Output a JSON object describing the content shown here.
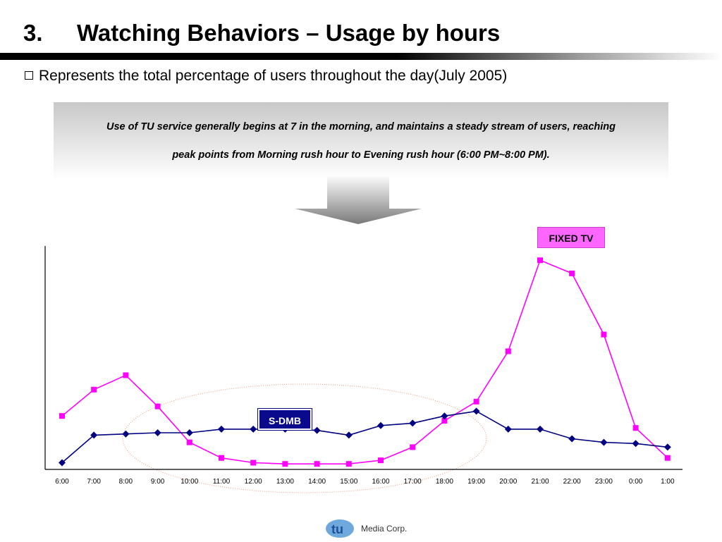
{
  "slide": {
    "title_number": "3.",
    "title_text": "Watching Behaviors – Usage by hours",
    "subtitle": "Represents the total percentage of users throughout the day(July 2005)",
    "callout_line1": "Use of TU service generally begins at 7 in the morning, and maintains a steady stream of users, reaching",
    "callout_line2": "peak points from  Morning rush hour to  Evening rush hour (6:00 PM~8:00 PM).",
    "logo_text": "Media Corp.",
    "logo_mark": "tu"
  },
  "colors": {
    "fixed_tv": "#ff00ff",
    "s_dmb": "#000080",
    "fixed_tv_tag": "#ff66ff",
    "s_dmb_tag": "#0a0a8c",
    "highlight_ellipse": "#e8a080"
  },
  "chart_data": {
    "type": "line",
    "title": "",
    "xlabel": "",
    "ylabel": "",
    "categories": [
      "6:00",
      "7:00",
      "8:00",
      "9:00",
      "10:00",
      "11:00",
      "12:00",
      "13:00",
      "14:00",
      "15:00",
      "16:00",
      "17:00",
      "18:00",
      "19:00",
      "20:00",
      "21:00",
      "22:00",
      "23:00",
      "0:00",
      "1:00"
    ],
    "ylim": [
      0,
      100
    ],
    "grid": false,
    "series": [
      {
        "name": "FIXED TV",
        "marker": "square",
        "values": [
          22,
          33,
          39,
          26,
          11,
          4.5,
          2.5,
          2,
          2,
          2,
          3.5,
          9,
          20,
          28,
          49,
          87,
          81.5,
          56,
          17,
          4.5
        ]
      },
      {
        "name": "S-DMB",
        "marker": "diamond",
        "values": [
          2.5,
          14,
          14.5,
          15,
          15,
          16.5,
          16.5,
          16.5,
          16,
          14,
          18,
          19,
          22,
          24,
          16.5,
          16.5,
          12.5,
          11,
          10.5,
          9
        ]
      }
    ],
    "highlight": "ellipse around 8:00–19:00 region"
  }
}
